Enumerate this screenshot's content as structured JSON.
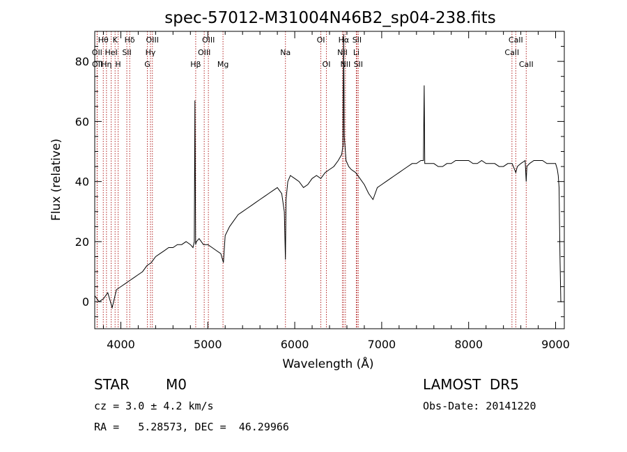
{
  "chart_data": {
    "type": "line",
    "title": "spec-57012-M31004N46B2_sp04-238.fits",
    "xlabel": "Wavelength (Å)",
    "ylabel": "Flux (relative)",
    "xlim": [
      3700,
      9100
    ],
    "ylim": [
      -9,
      90
    ],
    "xticks": [
      4000,
      5000,
      6000,
      7000,
      8000,
      9000
    ],
    "yticks": [
      0,
      20,
      40,
      60,
      80
    ],
    "grid": false,
    "line_color": "#000000",
    "marker_color": "#b22222",
    "series": [
      {
        "x": [
          3700,
          3750,
          3800,
          3850,
          3900,
          3950,
          4000,
          4050,
          4100,
          4150,
          4200,
          4250,
          4300,
          4350,
          4400,
          4450,
          4500,
          4550,
          4600,
          4650,
          4700,
          4750,
          4800,
          4830,
          4845,
          4852,
          4860,
          4870,
          4900,
          4950,
          5000,
          5050,
          5100,
          5150,
          5180,
          5200,
          5250,
          5300,
          5350,
          5400,
          5450,
          5500,
          5550,
          5600,
          5650,
          5700,
          5750,
          5800,
          5850,
          5880,
          5893,
          5900,
          5920,
          5950,
          6000,
          6050,
          6100,
          6150,
          6200,
          6250,
          6300,
          6350,
          6400,
          6450,
          6500,
          6540,
          6555,
          6563,
          6570,
          6590,
          6620,
          6650,
          6700,
          6750,
          6800,
          6850,
          6900,
          6950,
          7000,
          7050,
          7100,
          7150,
          7200,
          7250,
          7300,
          7350,
          7400,
          7450,
          7480,
          7489,
          7495,
          7500,
          7550,
          7600,
          7650,
          7700,
          7750,
          7800,
          7850,
          7900,
          7950,
          8000,
          8050,
          8100,
          8150,
          8200,
          8250,
          8300,
          8350,
          8400,
          8450,
          8500,
          8542,
          8560,
          8600,
          8650,
          8662,
          8670,
          8700,
          8750,
          8800,
          8850,
          8900,
          8950,
          9000,
          9020,
          9030,
          9040,
          9050,
          9060,
          9070
        ],
        "y": [
          2,
          0,
          1,
          3,
          -2,
          4,
          5,
          6,
          7,
          8,
          9,
          10,
          12,
          13,
          15,
          16,
          17,
          18,
          18,
          19,
          19,
          20,
          19,
          18,
          20,
          67,
          19,
          20,
          21,
          19,
          19,
          18,
          17,
          16,
          13,
          22,
          25,
          27,
          29,
          30,
          31,
          32,
          33,
          34,
          35,
          36,
          37,
          38,
          36,
          30,
          14,
          34,
          40,
          42,
          41,
          40,
          38,
          39,
          41,
          42,
          41,
          43,
          44,
          45,
          47,
          49,
          52,
          89,
          55,
          47,
          45,
          44,
          43,
          41,
          39,
          36,
          34,
          38,
          39,
          40,
          41,
          42,
          43,
          44,
          45,
          46,
          46,
          47,
          47,
          72,
          46,
          46,
          46,
          46,
          45,
          45,
          46,
          46,
          47,
          47,
          47,
          47,
          46,
          46,
          47,
          46,
          46,
          46,
          45,
          45,
          46,
          46,
          43,
          45,
          46,
          47,
          40,
          45,
          46,
          47,
          47,
          47,
          46,
          46,
          46,
          44,
          42,
          38,
          15,
          0,
          0
        ]
      }
    ],
    "line_markers": [
      {
        "label": "Hθ",
        "x": 3798,
        "row": 0
      },
      {
        "label": "OII",
        "x": 3727,
        "row": 1
      },
      {
        "label": "OII",
        "x": 3729,
        "row": 2
      },
      {
        "label": "Hη",
        "x": 3835,
        "row": 2
      },
      {
        "label": "K",
        "x": 3934,
        "row": 0
      },
      {
        "label": "HeI",
        "x": 3889,
        "row": 1
      },
      {
        "label": "H",
        "x": 3969,
        "row": 2
      },
      {
        "label": "Hδ",
        "x": 4102,
        "row": 0
      },
      {
        "label": "SII",
        "x": 4069,
        "row": 1
      },
      {
        "label": "OIII",
        "x": 4363,
        "row": 0
      },
      {
        "label": "Hγ",
        "x": 4341,
        "row": 1
      },
      {
        "label": "G",
        "x": 4305,
        "row": 2
      },
      {
        "label": "Hβ",
        "x": 4861,
        "row": 2
      },
      {
        "label": "OIII",
        "x": 5007,
        "row": 0
      },
      {
        "label": "OIII",
        "x": 4959,
        "row": 1
      },
      {
        "label": "Mg",
        "x": 5175,
        "row": 2
      },
      {
        "label": "Na",
        "x": 5893,
        "row": 1
      },
      {
        "label": "OI",
        "x": 6300,
        "row": 0
      },
      {
        "label": "OI",
        "x": 6364,
        "row": 2
      },
      {
        "label": "Hα",
        "x": 6563,
        "row": 0
      },
      {
        "label": "NII",
        "x": 6548,
        "row": 1
      },
      {
        "label": "NII",
        "x": 6583,
        "row": 2
      },
      {
        "label": "SII",
        "x": 6716,
        "row": 0
      },
      {
        "label": "Li",
        "x": 6708,
        "row": 1
      },
      {
        "label": "SII",
        "x": 6731,
        "row": 2
      },
      {
        "label": "CaII",
        "x": 8542,
        "row": 0
      },
      {
        "label": "CaII",
        "x": 8498,
        "row": 1
      },
      {
        "label": "CaII",
        "x": 8662,
        "row": 2
      }
    ]
  },
  "info": {
    "class_label": "STAR",
    "subclass_label": "M0",
    "survey_label": "LAMOST  DR5",
    "cz_text": "cz = 3.0 ± 4.2 km/s",
    "obs_date_text": "Obs-Date: 20141220",
    "coords_text": "RA =   5.28573, DEC =  46.29966"
  }
}
